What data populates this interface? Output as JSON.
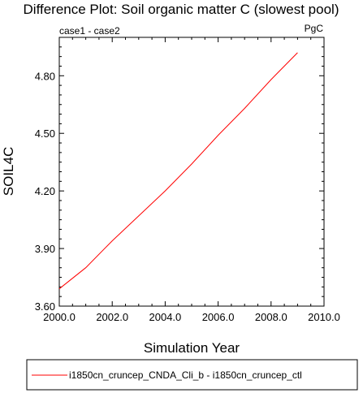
{
  "chart_data": {
    "type": "line",
    "title": "Difference Plot: Soil organic matter C (slowest pool)",
    "left_subtitle": "case1 - case2",
    "right_subtitle": "PgC",
    "xlabel": "Simulation Year",
    "ylabel": "SOIL4C",
    "xlim": [
      2000.0,
      2010.0
    ],
    "ylim": [
      3.6,
      5.0
    ],
    "xticks": [
      "2000.0",
      "2002.0",
      "2004.0",
      "2006.0",
      "2008.0",
      "2010.0"
    ],
    "xtick_values": [
      2000,
      2002,
      2004,
      2006,
      2008,
      2010
    ],
    "yticks": [
      "3.60",
      "3.90",
      "4.20",
      "4.50",
      "4.80"
    ],
    "ytick_values": [
      3.6,
      3.9,
      4.2,
      4.5,
      4.8
    ],
    "grid": false,
    "legend_position": "bottom",
    "series": [
      {
        "name": "i1850cn_cruncep_CNDA_Cli_b - i1850cn_cruncep_ctl",
        "color": "#ff0000",
        "x": [
          2000,
          2001,
          2002,
          2003,
          2004,
          2005,
          2006,
          2007,
          2008,
          2009
        ],
        "y": [
          3.69,
          3.8,
          3.94,
          4.07,
          4.2,
          4.34,
          4.49,
          4.63,
          4.78,
          4.92
        ]
      }
    ]
  }
}
